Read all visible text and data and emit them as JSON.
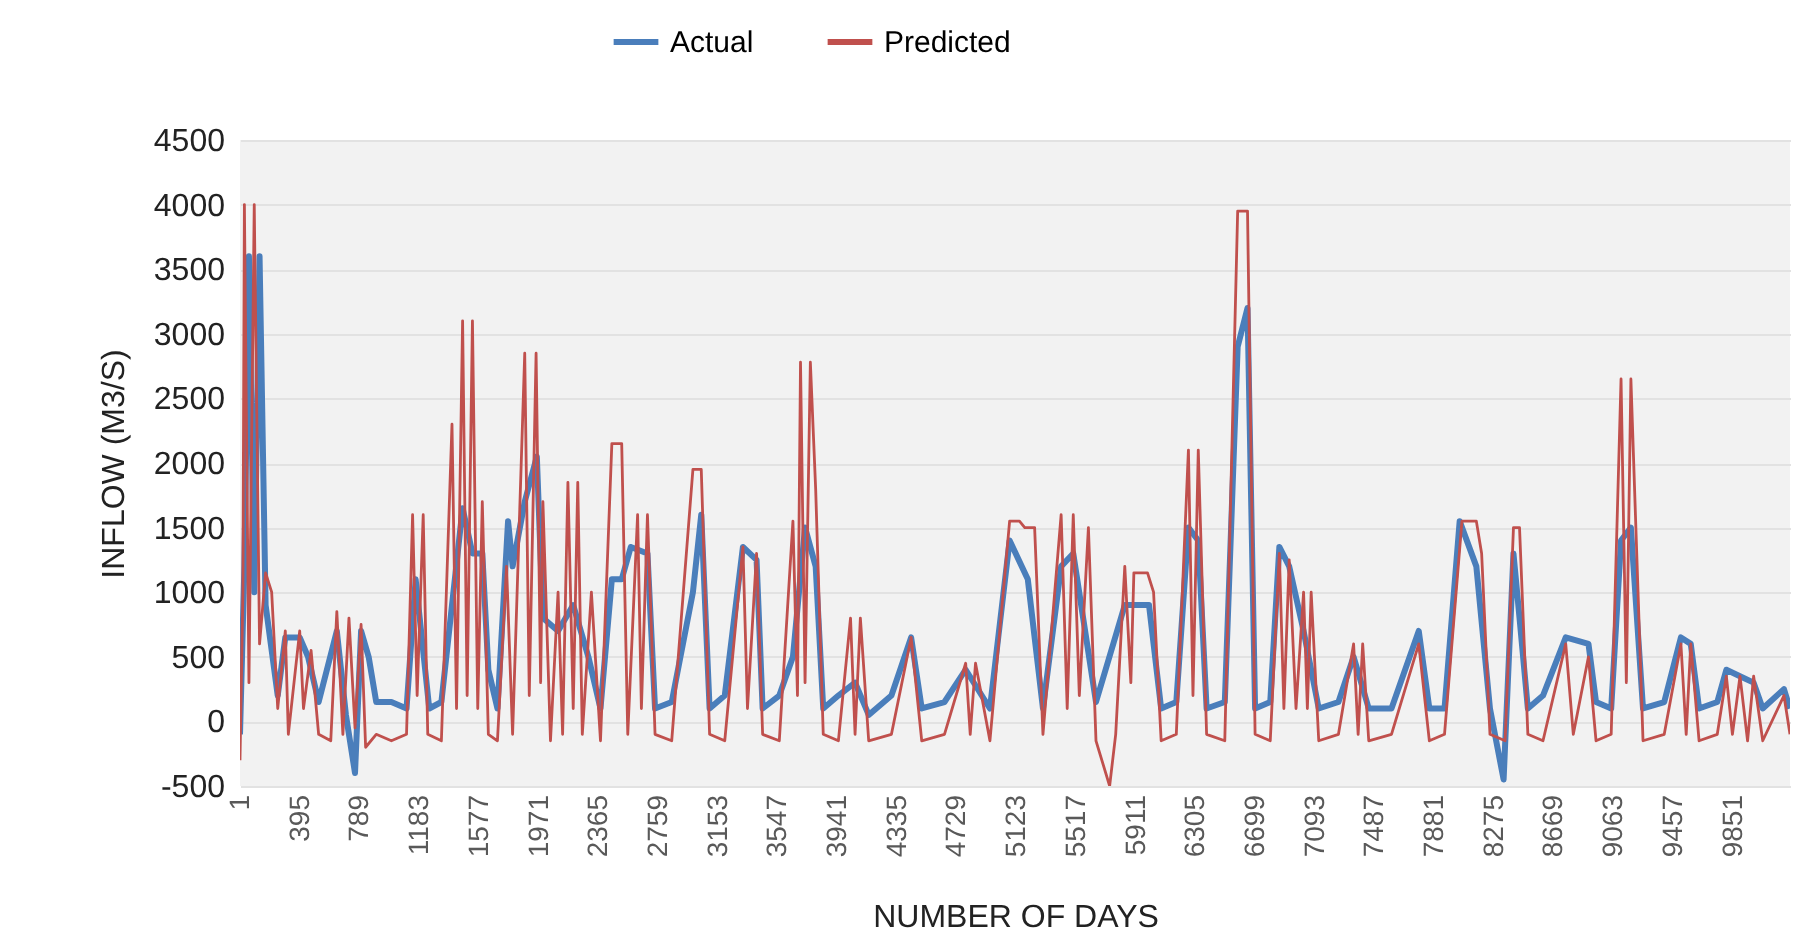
{
  "chart_data": {
    "type": "line",
    "xlabel": "NUMBER OF DAYS",
    "ylabel": "INFLOW (M3/S)",
    "xlim": [
      1,
      10230
    ],
    "xticks": [
      1,
      395,
      789,
      1183,
      1577,
      1971,
      2365,
      2759,
      3153,
      3547,
      3941,
      4335,
      4729,
      5123,
      5517,
      5911,
      6305,
      6699,
      7093,
      7487,
      7881,
      8275,
      8669,
      9063,
      9457,
      9851
    ],
    "ylim": [
      -500,
      4500
    ],
    "yticks": [
      -500,
      0,
      500,
      1000,
      1500,
      2000,
      2500,
      3000,
      3500,
      4000,
      4500
    ],
    "grid": "y",
    "legend": "top",
    "marker": "none",
    "line_style": "solid",
    "series": [
      {
        "name": "Actual",
        "color": "#4a7ebb",
        "x": [
          1,
          30,
          60,
          95,
          130,
          170,
          250,
          300,
          395,
          450,
          520,
          640,
          700,
          760,
          800,
          850,
          900,
          1000,
          1100,
          1160,
          1250,
          1330,
          1470,
          1535,
          1600,
          1640,
          1700,
          1770,
          1800,
          1880,
          1960,
          2000,
          2100,
          2200,
          2300,
          2380,
          2455,
          2520,
          2580,
          2690,
          2740,
          2850,
          2990,
          3045,
          3100,
          3200,
          3320,
          3410,
          3450,
          3560,
          3650,
          3730,
          3800,
          3850,
          3950,
          4060,
          4150,
          4300,
          4430,
          4500,
          4650,
          4790,
          4950,
          5080,
          5200,
          5300,
          5420,
          5500,
          5650,
          5840,
          6000,
          6080,
          6180,
          6260,
          6325,
          6380,
          6500,
          6585,
          6650,
          6700,
          6800,
          6860,
          6925,
          7020,
          7120,
          7250,
          7350,
          7450,
          7600,
          7780,
          7850,
          7950,
          8050,
          8160,
          8250,
          8340,
          8405,
          8445,
          8500,
          8600,
          8750,
          8900,
          8950,
          9050,
          9115,
          9180,
          9260,
          9400,
          9510,
          9575,
          9630,
          9750,
          9810,
          9900,
          9990,
          10050,
          10190,
          10230
        ],
        "values": [
          -100,
          1200,
          3600,
          1000,
          3600,
          900,
          200,
          650,
          650,
          500,
          150,
          700,
          50,
          -400,
          700,
          500,
          150,
          150,
          100,
          1100,
          100,
          150,
          1650,
          1300,
          1300,
          400,
          100,
          1550,
          1200,
          1700,
          2050,
          800,
          700,
          900,
          500,
          100,
          1100,
          1100,
          1350,
          1300,
          100,
          150,
          1000,
          1600,
          100,
          200,
          1350,
          1250,
          100,
          200,
          500,
          1500,
          1200,
          100,
          200,
          300,
          50,
          200,
          650,
          100,
          150,
          400,
          100,
          1400,
          1100,
          100,
          1200,
          1300,
          150,
          900,
          900,
          100,
          150,
          1500,
          1400,
          100,
          150,
          2900,
          3200,
          100,
          150,
          1350,
          1200,
          700,
          100,
          150,
          500,
          100,
          100,
          700,
          100,
          100,
          1550,
          1200,
          100,
          -450,
          1300,
          800,
          100,
          200,
          650,
          600,
          150,
          100,
          1400,
          1500,
          100,
          150,
          650,
          600,
          100,
          150,
          400,
          350,
          300,
          100,
          250,
          100
        ]
      },
      {
        "name": "Predicted",
        "color": "#c0504d",
        "x": [
          1,
          20,
          30,
          60,
          95,
          130,
          170,
          210,
          250,
          300,
          320,
          395,
          420,
          470,
          520,
          600,
          640,
          680,
          720,
          760,
          800,
          830,
          900,
          1000,
          1100,
          1140,
          1170,
          1210,
          1240,
          1330,
          1400,
          1430,
          1470,
          1500,
          1535,
          1570,
          1600,
          1640,
          1700,
          1760,
          1800,
          1880,
          1910,
          1955,
          1985,
          2000,
          2050,
          2100,
          2130,
          2165,
          2200,
          2230,
          2260,
          2320,
          2380,
          2455,
          2520,
          2560,
          2625,
          2650,
          2690,
          2740,
          2850,
          2990,
          3045,
          3100,
          3200,
          3320,
          3350,
          3410,
          3450,
          3560,
          3650,
          3680,
          3700,
          3730,
          3765,
          3800,
          3850,
          3950,
          4030,
          4060,
          4095,
          4150,
          4300,
          4430,
          4500,
          4650,
          4790,
          4820,
          4855,
          4950,
          5080,
          5145,
          5180,
          5245,
          5300,
          5420,
          5460,
          5500,
          5540,
          5600,
          5650,
          5740,
          5780,
          5840,
          5880,
          5900,
          5990,
          6030,
          6080,
          6180,
          6260,
          6290,
          6325,
          6380,
          6500,
          6585,
          6650,
          6700,
          6800,
          6860,
          6890,
          6925,
          6970,
          7020,
          7045,
          7070,
          7120,
          7250,
          7350,
          7380,
          7410,
          7450,
          7600,
          7780,
          7850,
          7950,
          8065,
          8160,
          8195,
          8250,
          8350,
          8405,
          8445,
          8500,
          8600,
          8750,
          8800,
          8900,
          8950,
          9050,
          9115,
          9150,
          9180,
          9210,
          9260,
          9400,
          9510,
          9545,
          9575,
          9630,
          9750,
          9810,
          9850,
          9900,
          9950,
          9990,
          10050,
          10190,
          10230
        ],
        "values": [
          -300,
          1000,
          4000,
          300,
          4000,
          600,
          1150,
          1000,
          100,
          700,
          -100,
          700,
          100,
          550,
          -100,
          -150,
          850,
          -100,
          800,
          -50,
          750,
          -200,
          -100,
          -150,
          -100,
          1600,
          200,
          1600,
          -100,
          -150,
          2300,
          100,
          3100,
          200,
          3100,
          100,
          1700,
          -100,
          -150,
          1200,
          -100,
          2850,
          200,
          2850,
          300,
          1700,
          -150,
          1000,
          -100,
          1850,
          100,
          1850,
          -100,
          1000,
          -150,
          2150,
          2150,
          -100,
          1600,
          100,
          1600,
          -100,
          -150,
          1950,
          1950,
          -100,
          -150,
          1350,
          100,
          1300,
          -100,
          -150,
          1550,
          200,
          2780,
          300,
          2780,
          1800,
          -100,
          -150,
          800,
          -100,
          800,
          -150,
          -100,
          650,
          -150,
          -100,
          450,
          -100,
          450,
          -150,
          1550,
          1550,
          1500,
          1500,
          -100,
          1600,
          100,
          1600,
          200,
          1500,
          -150,
          -500,
          -100,
          1200,
          300,
          1150,
          1150,
          1000,
          -150,
          -100,
          2100,
          200,
          2100,
          -100,
          -150,
          3950,
          3950,
          -100,
          -150,
          1300,
          100,
          1250,
          100,
          1000,
          100,
          1000,
          -150,
          -100,
          600,
          -100,
          600,
          -150,
          -100,
          600,
          -150,
          -100,
          1550,
          1550,
          1300,
          -100,
          -150,
          1500,
          1500,
          -100,
          -150,
          600,
          -100,
          500,
          -150,
          -100,
          2650,
          300,
          2650,
          1600,
          -150,
          -100,
          600,
          -100,
          600,
          -150,
          -100,
          350,
          -100,
          350,
          -150,
          350,
          -150,
          200,
          -100
        ]
      }
    ]
  }
}
